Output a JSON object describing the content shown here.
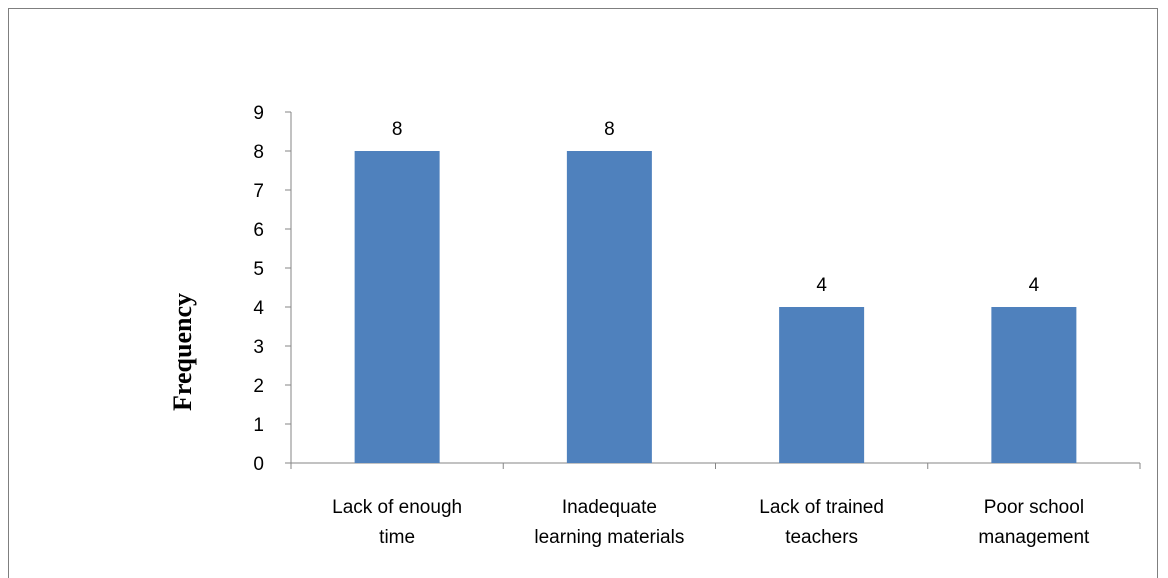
{
  "chart_data": {
    "type": "bar",
    "title": "",
    "xlabel": "",
    "ylabel": "Frequency",
    "categories": [
      [
        "Lack of enough",
        "time"
      ],
      [
        "Inadequate",
        "learning materials"
      ],
      [
        "Lack of trained",
        "teachers"
      ],
      [
        "Poor school",
        "management"
      ]
    ],
    "values": [
      8,
      8,
      4,
      4
    ],
    "data_labels": [
      "8",
      "8",
      "4",
      "4"
    ],
    "ylim": [
      0,
      9
    ],
    "yticks": [
      0,
      1,
      2,
      3,
      4,
      5,
      6,
      7,
      8,
      9
    ],
    "grid": false,
    "legend": "none",
    "bar_color": "#4F81BD"
  }
}
